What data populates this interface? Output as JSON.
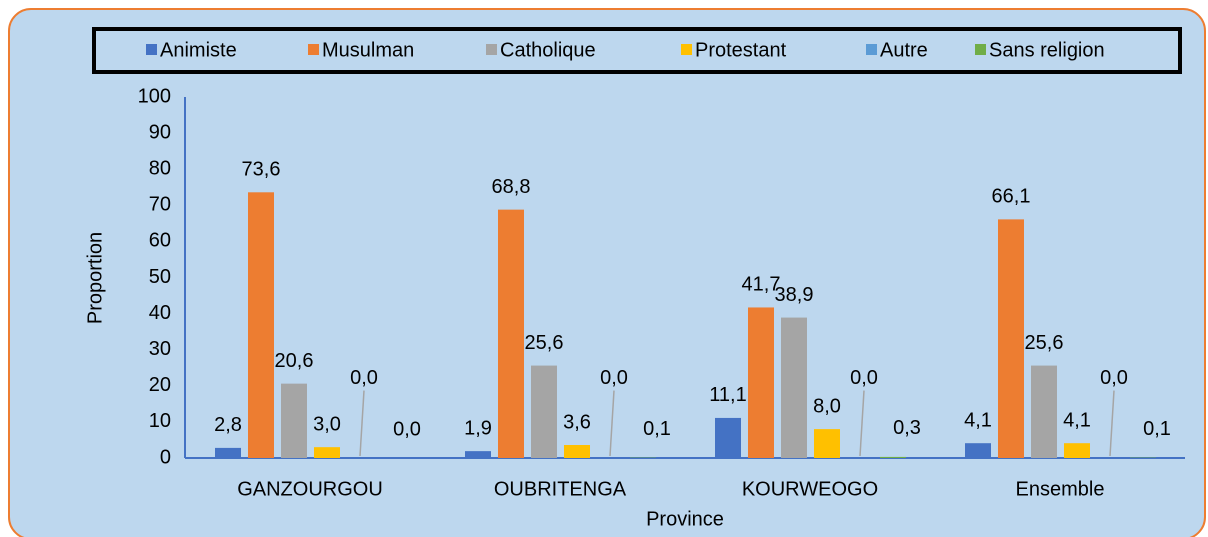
{
  "chart_data": {
    "type": "bar",
    "categories": [
      "GANZOURGOU",
      "OUBRITENGA",
      "KOURWEOGO",
      "Ensemble"
    ],
    "series": [
      {
        "name": "Animiste",
        "color": "#4472c4",
        "values": [
          2.8,
          1.9,
          11.1,
          4.1
        ],
        "value_labels": [
          "2,8",
          "1,9",
          "11,1",
          "4,1"
        ]
      },
      {
        "name": "Musulman",
        "color": "#ed7d31",
        "values": [
          73.6,
          68.8,
          41.7,
          66.1
        ],
        "value_labels": [
          "73,6",
          "68,8",
          "41,7",
          "66,1"
        ]
      },
      {
        "name": "Catholique",
        "color": "#a5a5a5",
        "values": [
          20.6,
          25.6,
          38.9,
          25.6
        ],
        "value_labels": [
          "20,6",
          "25,6",
          "38,9",
          "25,6"
        ]
      },
      {
        "name": "Protestant",
        "color": "#ffc000",
        "values": [
          3.0,
          3.6,
          8.0,
          4.1
        ],
        "value_labels": [
          "3,0",
          "3,6",
          "8,0",
          "4,1"
        ]
      },
      {
        "name": "Autre",
        "color": "#5b9bd5",
        "values": [
          0.0,
          0.0,
          0.0,
          0.0
        ],
        "value_labels": [
          "0,0",
          "0,0",
          "0,0",
          "0,0"
        ]
      },
      {
        "name": "Sans religion",
        "color": "#70ad47",
        "values": [
          0.0,
          0.1,
          0.3,
          0.1
        ],
        "value_labels": [
          "0,0",
          "0,1",
          "0,3",
          "0,1"
        ]
      }
    ],
    "xlabel": "Province",
    "ylabel": "Proportion",
    "ylim": [
      0,
      100
    ],
    "yticks": [
      0,
      10,
      20,
      30,
      40,
      50,
      60,
      70,
      80,
      90,
      100
    ],
    "legend": "top"
  }
}
